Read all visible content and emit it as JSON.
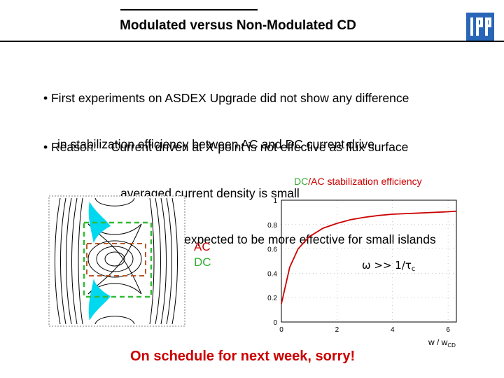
{
  "slide": {
    "title": "Modulated versus Non-Modulated CD",
    "bullet1_line1": "• First experiments on ASDEX Upgrade did not show any difference",
    "bullet1_line2": "in stabilization efficiency between AC and DC current drive",
    "bullet2_line1": "• Reason:  - Current driven at X-point is not effective as flux surface",
    "bullet2_line2": "averaged current density is small",
    "bullet2_line3": "- Modulation expected to be more effective for small islands",
    "efficiency_label_dc": "DC",
    "efficiency_label_rest": "/AC stabilization efficiency",
    "ac_label": "AC",
    "dc_label": "DC",
    "footer": "On schedule for next week, sorry!",
    "logo_text": "IPP"
  },
  "colors": {
    "accent_red": "#cc0000",
    "dc_green": "#33aa33",
    "cyan": "#00d8f0",
    "ac_brown": "#b85a2a"
  },
  "chart_data": {
    "type": "line",
    "x": [
      0,
      0.3,
      0.6,
      1,
      1.5,
      2,
      2.5,
      3,
      3.5,
      4,
      4.5,
      5,
      5.5,
      6,
      6.3
    ],
    "y": [
      0.15,
      0.45,
      0.6,
      0.7,
      0.77,
      0.81,
      0.84,
      0.86,
      0.875,
      0.885,
      0.89,
      0.895,
      0.9,
      0.905,
      0.91
    ],
    "xlabel": "w / w",
    "xlabel_sub": "CD",
    "annotation_main": "ω >> 1/τ",
    "annotation_sub": "c",
    "xticks": [
      "0",
      "2",
      "4",
      "6"
    ],
    "yticks": [
      "0",
      "0.2",
      "0.4",
      "0.6",
      "0.8",
      "1"
    ],
    "xlim": [
      0,
      6.3
    ],
    "ylim": [
      0,
      1
    ],
    "line_color": "#cc0000",
    "grid": true
  }
}
